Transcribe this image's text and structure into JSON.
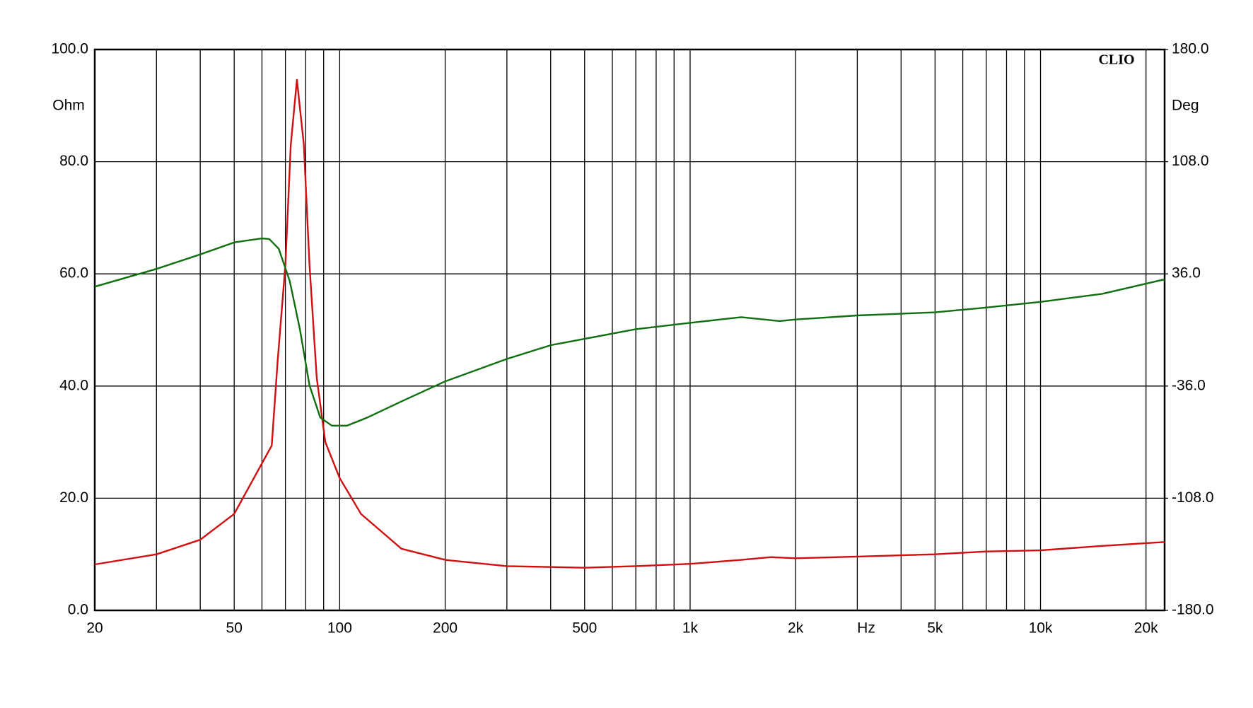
{
  "chart_data": {
    "type": "line",
    "brand": "CLIO",
    "xlabel": "Hz",
    "ylabel": "Ohm",
    "y2label": "Deg",
    "xscale": "log",
    "grid": true,
    "xlim": [
      20,
      22600
    ],
    "xticks": [
      20,
      50,
      100,
      200,
      500,
      {
        "value": 1000,
        "label": "1k"
      },
      {
        "value": 2000,
        "label": "2k"
      },
      {
        "value": 5000,
        "label": "5k"
      },
      {
        "value": 10000,
        "label": "10k"
      },
      {
        "value": 20000,
        "label": "20k"
      }
    ],
    "xminor_ticks": [
      30,
      40,
      60,
      70,
      80,
      90,
      300,
      400,
      600,
      700,
      800,
      900,
      3000,
      4000,
      6000,
      7000,
      8000,
      9000
    ],
    "ylim": [
      0,
      100
    ],
    "yticks": [
      {
        "value": 0,
        "label": "0.0"
      },
      {
        "value": 20,
        "label": "20.0"
      },
      {
        "value": 40,
        "label": "40.0"
      },
      {
        "value": 60,
        "label": "60.0"
      },
      {
        "value": 80,
        "label": "80.0"
      },
      {
        "value": 100,
        "label": "100.0"
      }
    ],
    "y2lim": [
      -180,
      180
    ],
    "y2ticks": [
      {
        "value": -180,
        "label": "-180.0"
      },
      {
        "value": -108,
        "label": "-108.0"
      },
      {
        "value": -36,
        "label": "-36.0"
      },
      {
        "value": 36,
        "label": "36.0"
      },
      {
        "value": 108,
        "label": "108.0"
      },
      {
        "value": 180,
        "label": "180.0"
      }
    ],
    "series": [
      {
        "color": "#d01010",
        "axis": "y",
        "x": [
          20,
          30,
          40,
          50,
          64,
          66.5,
          70,
          72.5,
          75.5,
          79,
          82,
          86,
          91,
          100,
          115,
          150,
          200,
          300,
          500,
          700,
          1000,
          1400,
          1700,
          2000,
          3000,
          5000,
          7000,
          10000,
          15000,
          22600
        ],
        "values": [
          8.2,
          10.0,
          12.6,
          17.2,
          29.4,
          44.4,
          61.6,
          83,
          94.6,
          83,
          61.6,
          41.5,
          30,
          23.6,
          17.2,
          11.0,
          9.0,
          7.9,
          7.6,
          7.9,
          8.3,
          9.0,
          9.5,
          9.3,
          9.6,
          10.0,
          10.5,
          10.7,
          11.5,
          12.2
        ]
      },
      {
        "color": "#107010",
        "axis": "y2",
        "x": [
          20,
          30,
          40,
          50,
          60,
          63,
          67,
          72,
          77,
          82,
          88,
          95,
          105,
          120,
          150,
          200,
          300,
          400,
          500,
          700,
          1000,
          1400,
          1800,
          2000,
          3000,
          5000,
          7000,
          10000,
          15000,
          22600
        ],
        "values": [
          27.8,
          39.2,
          48.5,
          56.2,
          58.8,
          58.3,
          52.1,
          31.5,
          0.5,
          -35.6,
          -56.2,
          -61.4,
          -61.4,
          -56.2,
          -45.9,
          -33.0,
          -18.6,
          -9.8,
          -5.7,
          0.5,
          4.6,
          8.2,
          5.7,
          6.7,
          9.3,
          11.3,
          14.4,
          18.0,
          23.2,
          32.5
        ]
      }
    ]
  }
}
